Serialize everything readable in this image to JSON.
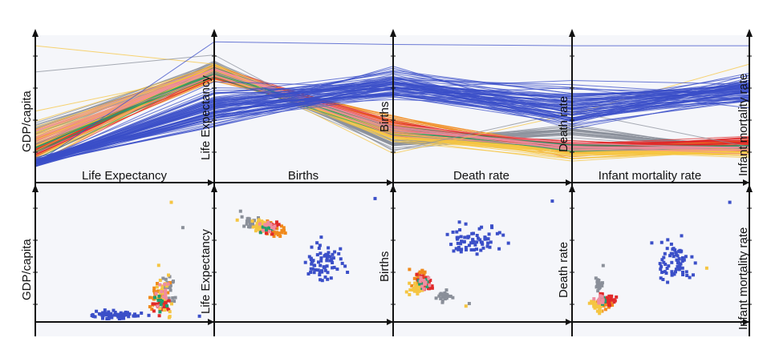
{
  "chart_data": [
    {
      "type": "parallel-coordinates",
      "axes": [
        "GDP/capita",
        "Life Expectancy",
        "Births",
        "Death rate",
        "Infant mortality rate"
      ],
      "axis_labels": {
        "left": [
          "GDP/capita",
          "Life Expectancy",
          "Births",
          "Death rate",
          "Infant mortality rate"
        ],
        "bottom": [
          "Life Expectancy",
          "Births",
          "Death rate",
          "Infant mortality rate"
        ]
      },
      "grid": true,
      "groups": [
        {
          "color": "#3b4fc8",
          "share": 0.35
        },
        {
          "color": "#8a8f99",
          "share": 0.12
        },
        {
          "color": "#f08a1c",
          "share": 0.17
        },
        {
          "color": "#e02a2a",
          "share": 0.14
        },
        {
          "color": "#f5c542",
          "share": 0.12
        },
        {
          "color": "#1f9e6f",
          "share": 0.04
        },
        {
          "color": "#f08ca0",
          "share": 0.06
        }
      ]
    },
    {
      "type": "scatter",
      "panels": [
        {
          "x": "Life Expectancy",
          "y": "GDP/capita"
        },
        {
          "x": "Births",
          "y": "Life Expectancy"
        },
        {
          "x": "Death rate",
          "y": "Births"
        },
        {
          "x": "Infant mortality rate",
          "y": "Death rate"
        }
      ],
      "right_axis_label": "Infant mortality rate"
    }
  ],
  "colors": {
    "blue": "#3b4fc8",
    "gray": "#8a8f99",
    "orange": "#f08a1c",
    "red": "#e02a2a",
    "yellow": "#f5c542",
    "green": "#1f9e6f",
    "pink": "#f08ca0",
    "background": "#f5f6fa",
    "axis": "#111111"
  }
}
